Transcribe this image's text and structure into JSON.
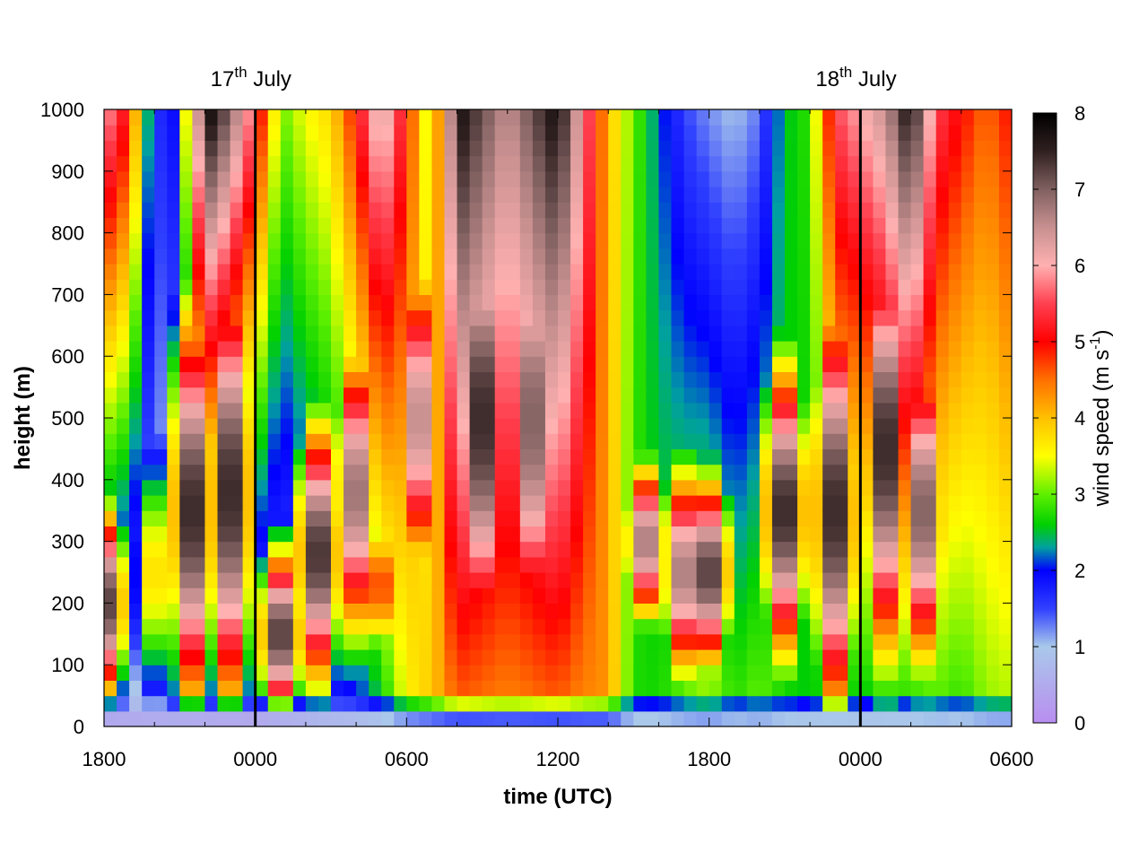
{
  "chart_data": {
    "type": "heatmap",
    "title": "",
    "xlabel": "time (UTC)",
    "ylabel": "height (m)",
    "x_ticks": [
      "1800",
      "0000",
      "0600",
      "1200",
      "1800",
      "0000",
      "0600"
    ],
    "x_tick_hours": [
      0,
      6,
      12,
      18,
      24,
      30,
      36
    ],
    "xlim_hours": [
      0,
      36
    ],
    "y_ticks": [
      0,
      100,
      200,
      300,
      400,
      500,
      600,
      700,
      800,
      900,
      1000
    ],
    "ylim": [
      0,
      1000
    ],
    "day_markers": [
      {
        "label": "17",
        "sup": "th",
        "suffix": " July",
        "hour": 6
      },
      {
        "label": "18",
        "sup": "th",
        "suffix": " July",
        "hour": 30
      }
    ],
    "colorbar": {
      "title": "wind speed (m s",
      "title_sup": "-1",
      "title_end": ")",
      "ticks": [
        0,
        1,
        2,
        3,
        4,
        5,
        6,
        7,
        8
      ],
      "range": [
        0,
        8
      ],
      "stops": [
        {
          "v": 0,
          "c": "#b98ef0"
        },
        {
          "v": 1,
          "c": "#a9c8ea"
        },
        {
          "v": 1.5,
          "c": "#3040ff"
        },
        {
          "v": 2,
          "c": "#0000ff"
        },
        {
          "v": 2.3,
          "c": "#00a0a0"
        },
        {
          "v": 2.6,
          "c": "#00d000"
        },
        {
          "v": 3,
          "c": "#60f000"
        },
        {
          "v": 3.5,
          "c": "#ffff00"
        },
        {
          "v": 4,
          "c": "#ffc000"
        },
        {
          "v": 4.5,
          "c": "#ff7000"
        },
        {
          "v": 5,
          "c": "#ff0000"
        },
        {
          "v": 5.5,
          "c": "#ff4050"
        },
        {
          "v": 6,
          "c": "#ffb0b0"
        },
        {
          "v": 6.5,
          "c": "#c89090"
        },
        {
          "v": 7,
          "c": "#806060"
        },
        {
          "v": 7.5,
          "c": "#302020"
        },
        {
          "v": 8,
          "c": "#000000"
        }
      ]
    },
    "grid": {
      "time_step_hours": 0.5,
      "height_levels_m": [
        0,
        25,
        50,
        75,
        100,
        125,
        150,
        175,
        200,
        225,
        250,
        275,
        300,
        325,
        350,
        375,
        400,
        425,
        450,
        475,
        500,
        525,
        550,
        575,
        600,
        625,
        650,
        675,
        700,
        725,
        750,
        775,
        800,
        825,
        850,
        875,
        900,
        925,
        950,
        975,
        1000
      ],
      "profiles": [
        {
          "h": 0,
          "s": 0.3,
          "top": 6.0
        },
        {
          "h": 1,
          "s": 0.5,
          "top": 5.0
        },
        {
          "h": 1.5,
          "s": 0.6,
          "top": 3.2
        },
        {
          "h": 2,
          "s": 0.6,
          "top": 1.6
        },
        {
          "h": 3,
          "s": 0.7,
          "top": 2.0
        },
        {
          "h": 4,
          "s": 0.5,
          "top": 8.0
        },
        {
          "h": 5,
          "s": 0.4,
          "top": 7.0
        },
        {
          "h": 6,
          "s": 0.3,
          "top": 5.5
        },
        {
          "h": 7,
          "s": 0.8,
          "top": 3.0
        },
        {
          "h": 8,
          "s": 1.2,
          "top": 3.5
        },
        {
          "h": 9,
          "s": 1.6,
          "top": 3.8
        },
        {
          "h": 10,
          "s": 1.9,
          "top": 5.0
        },
        {
          "h": 11,
          "s": 2.6,
          "top": 6.5
        },
        {
          "h": 12,
          "s": 4.0,
          "top": 5.0
        },
        {
          "h": 13,
          "s": 4.6,
          "top": 3.0
        },
        {
          "h": 14,
          "s": 5.2,
          "top": 7.8
        },
        {
          "h": 16,
          "s": 5.0,
          "top": 6.5
        },
        {
          "h": 18,
          "s": 5.2,
          "top": 7.8
        },
        {
          "h": 19,
          "s": 5.0,
          "top": 6.0
        },
        {
          "h": 20,
          "s": 5.0,
          "top": 4.0
        },
        {
          "h": 21,
          "s": 3.0,
          "top": 3.0
        },
        {
          "h": 22,
          "s": 3.0,
          "top": 2.2
        },
        {
          "h": 23,
          "s": 3.5,
          "top": 1.5
        },
        {
          "h": 24,
          "s": 3.8,
          "top": 1.2
        },
        {
          "h": 25,
          "s": 3.2,
          "top": 1.0
        },
        {
          "h": 26,
          "s": 3.5,
          "top": 1.3
        },
        {
          "h": 27,
          "s": 3.0,
          "top": 2.5
        },
        {
          "h": 28,
          "s": 2.8,
          "top": 2.8
        },
        {
          "h": 29,
          "s": 3.0,
          "top": 5.5
        },
        {
          "h": 30,
          "s": 2.6,
          "top": 6.0
        },
        {
          "h": 31,
          "s": 2.8,
          "top": 6.5
        },
        {
          "h": 32,
          "s": 2.8,
          "top": 7.8
        },
        {
          "h": 33,
          "s": 3.2,
          "top": 5.5
        },
        {
          "h": 34,
          "s": 3.0,
          "top": 5.0
        },
        {
          "h": 35,
          "s": 3.5,
          "top": 4.5
        },
        {
          "h": 36,
          "s": 3.6,
          "top": 5.0
        }
      ],
      "jets": [
        {
          "h": 0,
          "z": 200,
          "w": 180,
          "v": 7.8
        },
        {
          "h": 2,
          "z": 250,
          "w": 220,
          "v": 4.0
        },
        {
          "h": 3.5,
          "z": 350,
          "w": 380,
          "v": 8.0
        },
        {
          "h": 5,
          "z": 380,
          "w": 420,
          "v": 8.0
        },
        {
          "h": 7,
          "z": 150,
          "w": 160,
          "v": 7.8
        },
        {
          "h": 8.5,
          "z": 280,
          "w": 250,
          "v": 7.9
        },
        {
          "h": 10,
          "z": 380,
          "w": 280,
          "v": 7.3
        },
        {
          "h": 11,
          "z": 230,
          "w": 140,
          "v": 5.0
        },
        {
          "h": 12.5,
          "z": 500,
          "w": 300,
          "v": 7.0
        },
        {
          "h": 15,
          "z": 500,
          "w": 450,
          "v": 8.0
        },
        {
          "h": 17,
          "z": 500,
          "w": 450,
          "v": 7.5
        },
        {
          "h": 21.5,
          "z": 300,
          "w": 150,
          "v": 7.2
        },
        {
          "h": 23,
          "z": 250,
          "w": 200,
          "v": 7.2
        },
        {
          "h": 24,
          "z": 250,
          "w": 180,
          "v": 7.8
        },
        {
          "h": 27,
          "z": 350,
          "w": 280,
          "v": 8.0
        },
        {
          "h": 29,
          "z": 350,
          "w": 400,
          "v": 8.0
        },
        {
          "h": 31,
          "z": 450,
          "w": 400,
          "v": 8.0
        },
        {
          "h": 32.5,
          "z": 350,
          "w": 300,
          "v": 7.5
        }
      ]
    }
  }
}
